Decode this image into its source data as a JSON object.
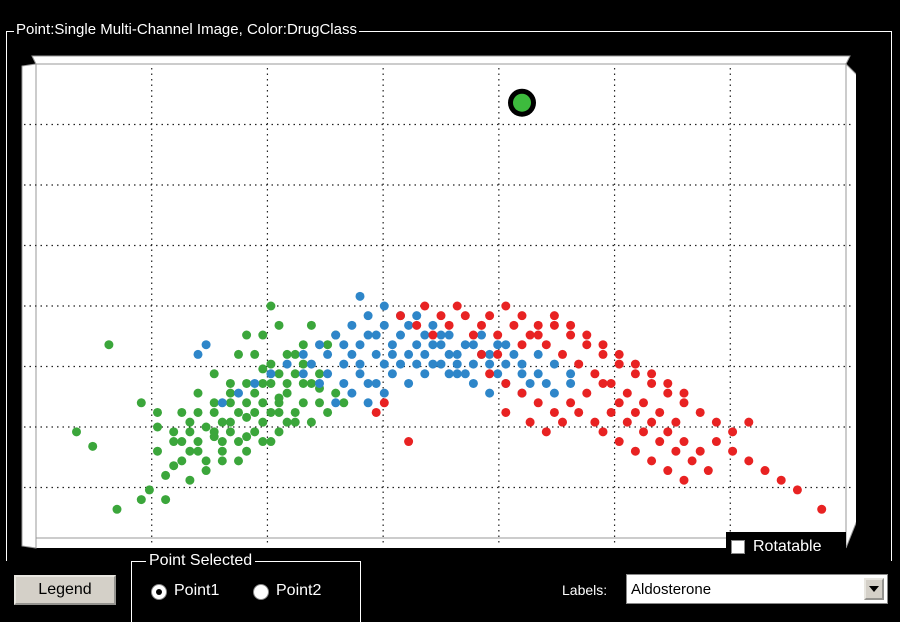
{
  "panel": {
    "title": "Point:Single Multi-Channel Image, Color:DrugClass"
  },
  "rotatable": {
    "label": "Rotatable",
    "checked": false
  },
  "legend_button": {
    "label": "Legend"
  },
  "point_selected": {
    "title": "Point Selected",
    "options": [
      "Point1",
      "Point2"
    ],
    "selected": "Point1"
  },
  "labels": {
    "label": "Labels:",
    "value": "Aldosterone"
  },
  "colors": {
    "green": "#3ba63b",
    "blue": "#2e86c9",
    "red": "#e82222",
    "highlight": "#3dbb3d"
  },
  "chart_data": {
    "type": "scatter",
    "title": "",
    "xlabel": "",
    "ylabel": "",
    "xlim": [
      0,
      100
    ],
    "ylim": [
      0,
      100
    ],
    "grid": true,
    "highlight_point": {
      "x": 60,
      "y": 92,
      "series": "green"
    },
    "series": [
      {
        "color_key": "green",
        "points": [
          [
            9,
            42
          ],
          [
            5,
            24
          ],
          [
            7,
            21
          ],
          [
            13,
            30
          ],
          [
            15,
            28
          ],
          [
            10,
            8
          ],
          [
            14,
            12
          ],
          [
            16,
            15
          ],
          [
            18,
            18
          ],
          [
            19,
            20
          ],
          [
            20,
            22
          ],
          [
            21,
            25
          ],
          [
            22,
            23
          ],
          [
            23,
            26
          ],
          [
            24,
            30
          ],
          [
            25,
            28
          ],
          [
            26,
            27
          ],
          [
            27,
            32
          ],
          [
            24,
            34
          ],
          [
            22,
            36
          ],
          [
            20,
            32
          ],
          [
            18,
            28
          ],
          [
            17,
            24
          ],
          [
            19,
            26
          ],
          [
            23,
            20
          ],
          [
            25,
            22
          ],
          [
            27,
            24
          ],
          [
            28,
            26
          ],
          [
            29,
            28
          ],
          [
            30,
            30
          ],
          [
            31,
            32
          ],
          [
            29,
            34
          ],
          [
            28,
            37
          ],
          [
            27,
            40
          ],
          [
            26,
            44
          ],
          [
            28,
            44
          ],
          [
            30,
            46
          ],
          [
            30,
            36
          ],
          [
            31,
            26
          ],
          [
            32,
            28
          ],
          [
            33,
            30
          ],
          [
            34,
            34
          ],
          [
            33,
            38
          ],
          [
            32,
            40
          ],
          [
            35,
            36
          ],
          [
            36,
            42
          ],
          [
            37,
            44
          ],
          [
            35,
            30
          ],
          [
            29,
            22
          ],
          [
            26,
            20
          ],
          [
            23,
            18
          ],
          [
            21,
            16
          ],
          [
            19,
            14
          ],
          [
            22,
            24
          ],
          [
            24,
            26
          ],
          [
            26,
            30
          ],
          [
            28,
            30
          ],
          [
            30,
            28
          ],
          [
            32,
            26
          ],
          [
            34,
            26
          ],
          [
            36,
            28
          ],
          [
            38,
            30
          ],
          [
            30,
            24
          ],
          [
            28,
            22
          ],
          [
            25,
            18
          ],
          [
            20,
            20
          ],
          [
            17,
            17
          ],
          [
            15,
            20
          ],
          [
            20,
            28
          ],
          [
            22,
            30
          ],
          [
            24,
            32
          ],
          [
            26,
            34
          ],
          [
            15,
            25
          ],
          [
            17,
            22
          ],
          [
            29,
            50
          ],
          [
            25,
            40
          ],
          [
            29,
            38
          ],
          [
            31,
            40
          ],
          [
            33,
            42
          ],
          [
            34,
            46
          ],
          [
            28,
            34
          ],
          [
            27,
            28
          ],
          [
            23,
            22
          ],
          [
            21,
            18
          ],
          [
            33,
            34
          ],
          [
            35,
            33
          ],
          [
            37,
            32
          ],
          [
            26,
            23
          ],
          [
            24,
            24
          ],
          [
            22,
            28
          ],
          [
            19,
            24
          ],
          [
            18,
            22
          ],
          [
            16,
            10
          ],
          [
            13,
            10
          ],
          [
            30,
            31
          ],
          [
            31,
            34
          ],
          [
            32,
            36
          ]
        ]
      },
      {
        "color_key": "blue",
        "points": [
          [
            33,
            40
          ],
          [
            35,
            42
          ],
          [
            37,
            44
          ],
          [
            39,
            40
          ],
          [
            40,
            42
          ],
          [
            41,
            44
          ],
          [
            42,
            40
          ],
          [
            43,
            38
          ],
          [
            44,
            42
          ],
          [
            45,
            44
          ],
          [
            46,
            46
          ],
          [
            47,
            42
          ],
          [
            48,
            40
          ],
          [
            49,
            42
          ],
          [
            50,
            44
          ],
          [
            51,
            40
          ],
          [
            52,
            38
          ],
          [
            53,
            36
          ],
          [
            54,
            38
          ],
          [
            55,
            40
          ],
          [
            56,
            38
          ],
          [
            57,
            36
          ],
          [
            58,
            38
          ],
          [
            59,
            40
          ],
          [
            60,
            36
          ],
          [
            61,
            34
          ],
          [
            62,
            36
          ],
          [
            63,
            34
          ],
          [
            64,
            32
          ],
          [
            36,
            36
          ],
          [
            38,
            34
          ],
          [
            40,
            36
          ],
          [
            42,
            34
          ],
          [
            44,
            36
          ],
          [
            46,
            34
          ],
          [
            48,
            36
          ],
          [
            50,
            38
          ],
          [
            52,
            40
          ],
          [
            54,
            34
          ],
          [
            56,
            32
          ],
          [
            58,
            34
          ],
          [
            60,
            32
          ],
          [
            39,
            46
          ],
          [
            41,
            48
          ],
          [
            43,
            46
          ],
          [
            45,
            48
          ],
          [
            47,
            48
          ],
          [
            49,
            46
          ],
          [
            51,
            44
          ],
          [
            53,
            42
          ],
          [
            55,
            44
          ],
          [
            57,
            42
          ],
          [
            34,
            38
          ],
          [
            36,
            40
          ],
          [
            38,
            38
          ],
          [
            40,
            38
          ],
          [
            42,
            44
          ],
          [
            44,
            40
          ],
          [
            46,
            40
          ],
          [
            48,
            44
          ],
          [
            50,
            42
          ],
          [
            52,
            36
          ],
          [
            54,
            42
          ],
          [
            56,
            40
          ],
          [
            58,
            42
          ],
          [
            60,
            38
          ],
          [
            62,
            40
          ],
          [
            64,
            38
          ],
          [
            66,
            36
          ],
          [
            66,
            34
          ],
          [
            37,
            30
          ],
          [
            39,
            32
          ],
          [
            41,
            30
          ],
          [
            43,
            32
          ],
          [
            45,
            38
          ],
          [
            47,
            38
          ],
          [
            49,
            38
          ],
          [
            51,
            36
          ],
          [
            38,
            42
          ],
          [
            35,
            34
          ],
          [
            33,
            36
          ],
          [
            31,
            38
          ],
          [
            29,
            36
          ],
          [
            27,
            34
          ],
          [
            25,
            32
          ],
          [
            23,
            30
          ],
          [
            21,
            42
          ],
          [
            20,
            40
          ],
          [
            40,
            52
          ],
          [
            43,
            50
          ],
          [
            41,
            34
          ]
        ]
      },
      {
        "color_key": "red",
        "points": [
          [
            45,
            48
          ],
          [
            47,
            46
          ],
          [
            49,
            44
          ],
          [
            51,
            46
          ],
          [
            53,
            48
          ],
          [
            55,
            46
          ],
          [
            57,
            44
          ],
          [
            59,
            46
          ],
          [
            61,
            44
          ],
          [
            63,
            42
          ],
          [
            65,
            40
          ],
          [
            67,
            38
          ],
          [
            69,
            36
          ],
          [
            71,
            34
          ],
          [
            73,
            32
          ],
          [
            75,
            30
          ],
          [
            77,
            28
          ],
          [
            79,
            26
          ],
          [
            56,
            36
          ],
          [
            58,
            34
          ],
          [
            60,
            32
          ],
          [
            62,
            30
          ],
          [
            64,
            28
          ],
          [
            66,
            30
          ],
          [
            68,
            32
          ],
          [
            70,
            34
          ],
          [
            72,
            30
          ],
          [
            74,
            28
          ],
          [
            76,
            26
          ],
          [
            78,
            24
          ],
          [
            80,
            22
          ],
          [
            82,
            20
          ],
          [
            84,
            22
          ],
          [
            86,
            24
          ],
          [
            88,
            26
          ],
          [
            60,
            42
          ],
          [
            62,
            44
          ],
          [
            64,
            46
          ],
          [
            66,
            44
          ],
          [
            68,
            42
          ],
          [
            70,
            40
          ],
          [
            72,
            38
          ],
          [
            74,
            36
          ],
          [
            76,
            34
          ],
          [
            78,
            32
          ],
          [
            80,
            30
          ],
          [
            82,
            28
          ],
          [
            84,
            26
          ],
          [
            86,
            20
          ],
          [
            88,
            18
          ],
          [
            90,
            16
          ],
          [
            92,
            14
          ],
          [
            94,
            12
          ],
          [
            97,
            8
          ],
          [
            54,
            44
          ],
          [
            56,
            48
          ],
          [
            58,
            50
          ],
          [
            60,
            48
          ],
          [
            62,
            46
          ],
          [
            64,
            48
          ],
          [
            66,
            46
          ],
          [
            68,
            44
          ],
          [
            70,
            42
          ],
          [
            72,
            40
          ],
          [
            74,
            38
          ],
          [
            76,
            36
          ],
          [
            78,
            34
          ],
          [
            80,
            32
          ],
          [
            67,
            28
          ],
          [
            69,
            26
          ],
          [
            71,
            28
          ],
          [
            73,
            26
          ],
          [
            75,
            24
          ],
          [
            77,
            22
          ],
          [
            79,
            20
          ],
          [
            81,
            18
          ],
          [
            83,
            16
          ],
          [
            61,
            26
          ],
          [
            63,
            24
          ],
          [
            65,
            26
          ],
          [
            52,
            50
          ],
          [
            50,
            48
          ],
          [
            48,
            50
          ],
          [
            70,
            24
          ],
          [
            72,
            22
          ],
          [
            74,
            20
          ],
          [
            76,
            18
          ],
          [
            78,
            16
          ],
          [
            80,
            14
          ],
          [
            58,
            28
          ],
          [
            46,
            22
          ],
          [
            43,
            30
          ],
          [
            42,
            28
          ],
          [
            55,
            40
          ],
          [
            57,
            40
          ]
        ]
      }
    ]
  }
}
